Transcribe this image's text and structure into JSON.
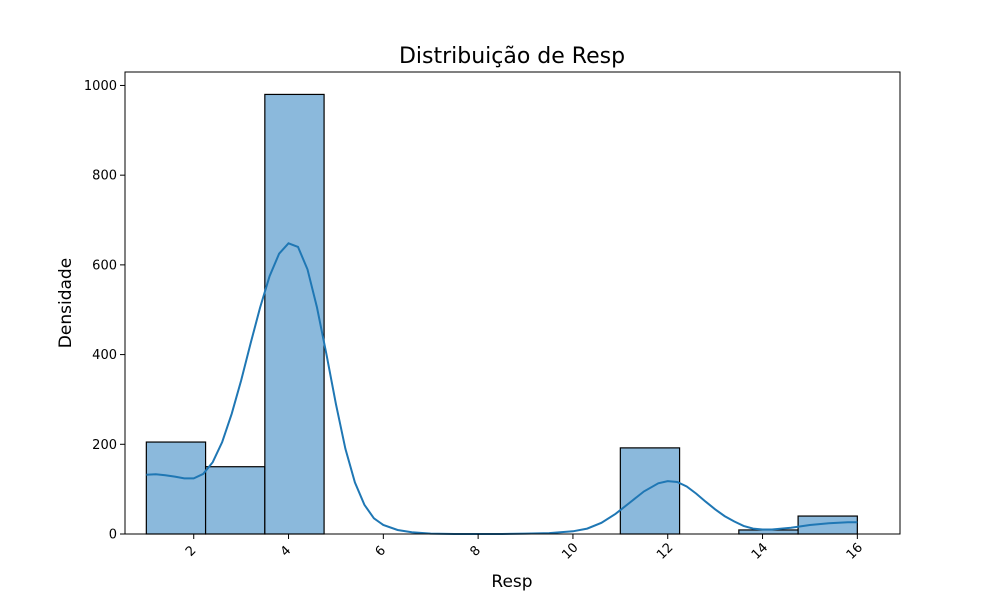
{
  "chart_data": {
    "type": "bar",
    "title": "Distribuição de Resp",
    "xlabel": "Resp",
    "ylabel": "Densidade",
    "xlim": [
      0.55,
      16.9
    ],
    "ylim": [
      0,
      1030
    ],
    "xticks": [
      2,
      4,
      6,
      8,
      10,
      12,
      14,
      16
    ],
    "yticks": [
      0,
      200,
      400,
      600,
      800,
      1000
    ],
    "xtick_rotation": 45,
    "bar_color": "#8bb9dc",
    "bar_edge_color": "#000000",
    "line_color": "#1f77b4",
    "grid": false,
    "bins": [
      {
        "x0": 1.0,
        "x1": 2.25,
        "value": 205
      },
      {
        "x0": 2.25,
        "x1": 3.5,
        "value": 150
      },
      {
        "x0": 3.5,
        "x1": 4.75,
        "value": 980
      },
      {
        "x0": 4.75,
        "x1": 6.0,
        "value": 0
      },
      {
        "x0": 6.0,
        "x1": 7.25,
        "value": 0
      },
      {
        "x0": 7.25,
        "x1": 8.5,
        "value": 0
      },
      {
        "x0": 8.5,
        "x1": 9.75,
        "value": 0
      },
      {
        "x0": 9.75,
        "x1": 11.0,
        "value": 0
      },
      {
        "x0": 11.0,
        "x1": 12.25,
        "value": 192
      },
      {
        "x0": 12.25,
        "x1": 13.5,
        "value": 0
      },
      {
        "x0": 13.5,
        "x1": 14.75,
        "value": 9
      },
      {
        "x0": 14.75,
        "x1": 16.0,
        "value": 40
      }
    ],
    "kde": {
      "x": [
        1.0,
        1.2,
        1.4,
        1.6,
        1.8,
        2.0,
        2.2,
        2.4,
        2.6,
        2.8,
        3.0,
        3.2,
        3.4,
        3.6,
        3.8,
        4.0,
        4.2,
        4.4,
        4.6,
        4.8,
        5.0,
        5.2,
        5.4,
        5.6,
        5.8,
        6.0,
        6.3,
        6.6,
        7.0,
        7.5,
        8.0,
        8.5,
        9.0,
        9.5,
        10.0,
        10.3,
        10.6,
        10.9,
        11.2,
        11.5,
        11.8,
        12.0,
        12.2,
        12.4,
        12.6,
        12.8,
        13.0,
        13.2,
        13.4,
        13.6,
        13.8,
        14.0,
        14.2,
        14.4,
        14.6,
        14.8,
        15.0,
        15.2,
        15.4,
        15.6,
        15.8,
        16.0
      ],
      "y": [
        132,
        133,
        131,
        128,
        124,
        124,
        134,
        160,
        205,
        268,
        342,
        425,
        505,
        575,
        625,
        648,
        640,
        590,
        505,
        400,
        290,
        190,
        115,
        65,
        35,
        20,
        9,
        4,
        1,
        0,
        0,
        0,
        1,
        2,
        6,
        12,
        25,
        45,
        70,
        95,
        113,
        118,
        116,
        106,
        90,
        72,
        55,
        40,
        28,
        18,
        12,
        10,
        10,
        12,
        14,
        17,
        20,
        22,
        24,
        25,
        26,
        26
      ]
    }
  }
}
